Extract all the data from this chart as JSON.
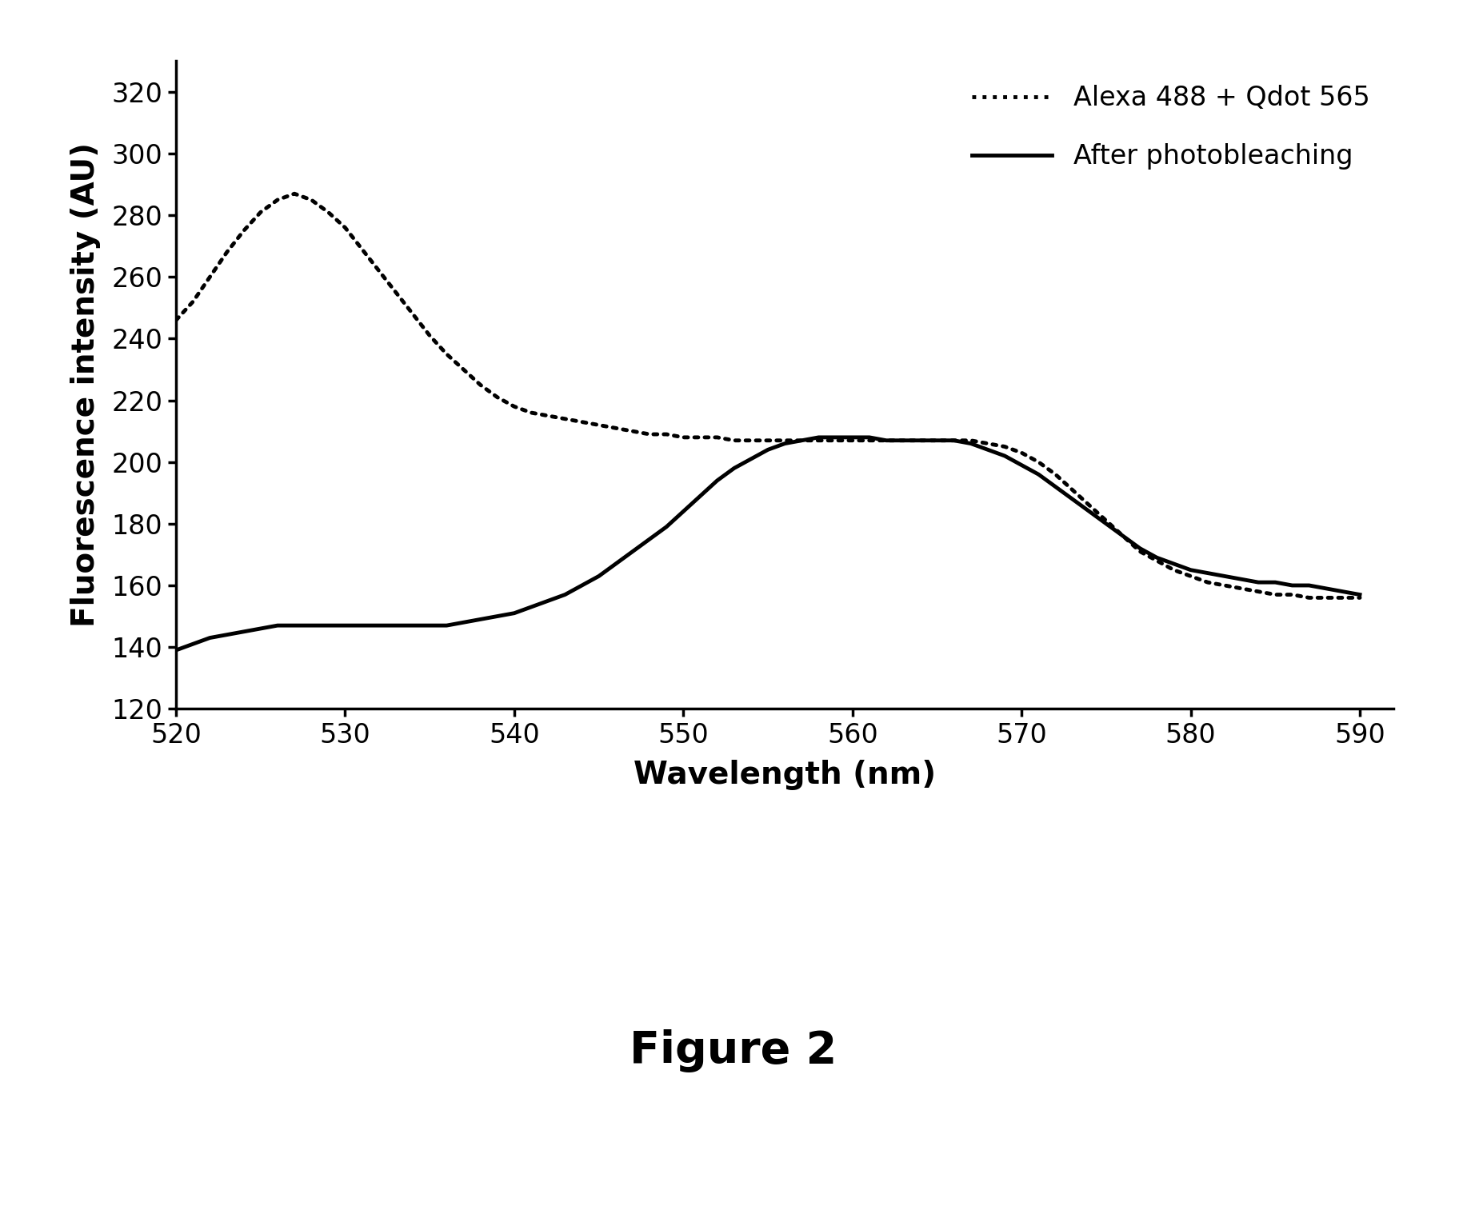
{
  "title": "Figure 2",
  "xlabel": "Wavelength (nm)",
  "ylabel": "Fluorescence intensity (AU)",
  "xlim": [
    520,
    592
  ],
  "ylim": [
    120,
    330
  ],
  "yticks": [
    120,
    140,
    160,
    180,
    200,
    220,
    240,
    260,
    280,
    300,
    320
  ],
  "xticks": [
    520,
    530,
    540,
    550,
    560,
    570,
    580,
    590
  ],
  "legend_labels": [
    "Alexa 488 + Qdot 565",
    "After photobleaching"
  ],
  "dotted_x": [
    520,
    521,
    522,
    523,
    524,
    525,
    526,
    527,
    528,
    529,
    530,
    531,
    532,
    533,
    534,
    535,
    536,
    537,
    538,
    539,
    540,
    541,
    542,
    543,
    544,
    545,
    546,
    547,
    548,
    549,
    550,
    551,
    552,
    553,
    554,
    555,
    556,
    557,
    558,
    559,
    560,
    561,
    562,
    563,
    564,
    565,
    566,
    567,
    568,
    569,
    570,
    571,
    572,
    573,
    574,
    575,
    576,
    577,
    578,
    579,
    580,
    581,
    582,
    583,
    584,
    585,
    586,
    587,
    588,
    589,
    590
  ],
  "dotted_y": [
    246,
    252,
    260,
    268,
    275,
    281,
    285,
    287,
    285,
    281,
    276,
    269,
    262,
    255,
    248,
    241,
    235,
    230,
    225,
    221,
    218,
    216,
    215,
    214,
    213,
    212,
    211,
    210,
    209,
    209,
    208,
    208,
    208,
    207,
    207,
    207,
    207,
    207,
    207,
    207,
    207,
    207,
    207,
    207,
    207,
    207,
    207,
    207,
    206,
    205,
    203,
    200,
    196,
    191,
    186,
    181,
    176,
    171,
    168,
    165,
    163,
    161,
    160,
    159,
    158,
    157,
    157,
    156,
    156,
    156,
    156
  ],
  "solid_x": [
    520,
    521,
    522,
    523,
    524,
    525,
    526,
    527,
    528,
    529,
    530,
    531,
    532,
    533,
    534,
    535,
    536,
    537,
    538,
    539,
    540,
    541,
    542,
    543,
    544,
    545,
    546,
    547,
    548,
    549,
    550,
    551,
    552,
    553,
    554,
    555,
    556,
    557,
    558,
    559,
    560,
    561,
    562,
    563,
    564,
    565,
    566,
    567,
    568,
    569,
    570,
    571,
    572,
    573,
    574,
    575,
    576,
    577,
    578,
    579,
    580,
    581,
    582,
    583,
    584,
    585,
    586,
    587,
    588,
    589,
    590
  ],
  "solid_y": [
    139,
    141,
    143,
    144,
    145,
    146,
    147,
    147,
    147,
    147,
    147,
    147,
    147,
    147,
    147,
    147,
    147,
    148,
    149,
    150,
    151,
    153,
    155,
    157,
    160,
    163,
    167,
    171,
    175,
    179,
    184,
    189,
    194,
    198,
    201,
    204,
    206,
    207,
    208,
    208,
    208,
    208,
    207,
    207,
    207,
    207,
    207,
    206,
    204,
    202,
    199,
    196,
    192,
    188,
    184,
    180,
    176,
    172,
    169,
    167,
    165,
    164,
    163,
    162,
    161,
    161,
    160,
    160,
    159,
    158,
    157
  ]
}
